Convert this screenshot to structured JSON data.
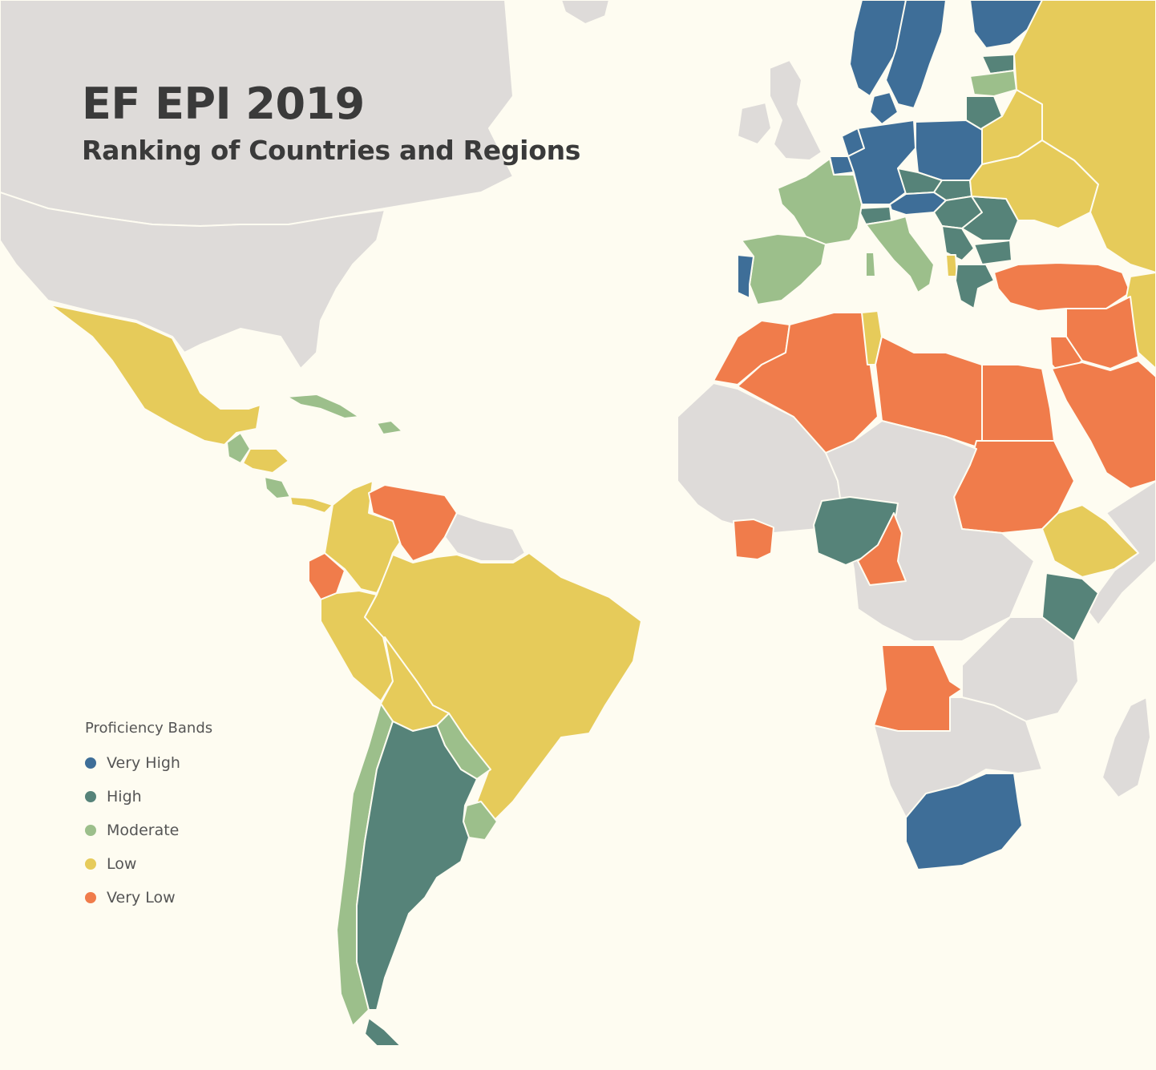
{
  "title": "EF EPI 2019",
  "subtitle": "Ranking of Countries and Regions",
  "legend": {
    "title": "Proficiency Bands",
    "items": [
      {
        "label": "Very High",
        "color": "#3e6e98"
      },
      {
        "label": "High",
        "color": "#568379"
      },
      {
        "label": "Moderate",
        "color": "#9cbf8b"
      },
      {
        "label": "Low",
        "color": "#e6cb5a"
      },
      {
        "label": "Very Low",
        "color": "#f07c4b"
      }
    ]
  },
  "colors": {
    "background": "#fefcf1",
    "no_data": "#dedbd9"
  },
  "countries": [
    {
      "name": "Canada",
      "band": "none"
    },
    {
      "name": "United States",
      "band": "none"
    },
    {
      "name": "Mexico",
      "band": "Low"
    },
    {
      "name": "Guatemala",
      "band": "Moderate"
    },
    {
      "name": "Honduras",
      "band": "Low"
    },
    {
      "name": "Costa Rica",
      "band": "Moderate"
    },
    {
      "name": "Panama",
      "band": "Low"
    },
    {
      "name": "Cuba",
      "band": "Moderate"
    },
    {
      "name": "Dominican Republic",
      "band": "Moderate"
    },
    {
      "name": "Colombia",
      "band": "Low"
    },
    {
      "name": "Venezuela",
      "band": "Very Low"
    },
    {
      "name": "Ecuador",
      "band": "Very Low"
    },
    {
      "name": "Peru",
      "band": "Low"
    },
    {
      "name": "Brazil",
      "band": "Low"
    },
    {
      "name": "Bolivia",
      "band": "Low"
    },
    {
      "name": "Paraguay",
      "band": "Moderate"
    },
    {
      "name": "Uruguay",
      "band": "Moderate"
    },
    {
      "name": "Chile",
      "band": "Moderate"
    },
    {
      "name": "Argentina",
      "band": "High"
    },
    {
      "name": "Guyana / Suriname",
      "band": "none"
    },
    {
      "name": "Greenland",
      "band": "none"
    },
    {
      "name": "Norway",
      "band": "Very High"
    },
    {
      "name": "Sweden",
      "band": "Very High"
    },
    {
      "name": "Finland",
      "band": "Very High"
    },
    {
      "name": "Denmark",
      "band": "Very High"
    },
    {
      "name": "Netherlands",
      "band": "Very High"
    },
    {
      "name": "Belgium",
      "band": "Very High"
    },
    {
      "name": "Germany",
      "band": "Very High"
    },
    {
      "name": "Poland",
      "band": "Very High"
    },
    {
      "name": "Austria",
      "band": "Very High"
    },
    {
      "name": "Portugal",
      "band": "Very High"
    },
    {
      "name": "Estonia",
      "band": "High"
    },
    {
      "name": "Latvia",
      "band": "Moderate"
    },
    {
      "name": "Lithuania",
      "band": "High"
    },
    {
      "name": "Czech Republic",
      "band": "High"
    },
    {
      "name": "Slovakia",
      "band": "High"
    },
    {
      "name": "Hungary",
      "band": "High"
    },
    {
      "name": "Romania",
      "band": "High"
    },
    {
      "name": "Serbia",
      "band": "High"
    },
    {
      "name": "Bulgaria",
      "band": "High"
    },
    {
      "name": "Greece",
      "band": "High"
    },
    {
      "name": "Switzerland",
      "band": "High"
    },
    {
      "name": "France",
      "band": "Moderate"
    },
    {
      "name": "Spain",
      "band": "Moderate"
    },
    {
      "name": "Italy",
      "band": "Moderate"
    },
    {
      "name": "Albania",
      "band": "Low"
    },
    {
      "name": "United Kingdom",
      "band": "none"
    },
    {
      "name": "Ireland",
      "band": "none"
    },
    {
      "name": "Belarus",
      "band": "Low"
    },
    {
      "name": "Ukraine",
      "band": "Low"
    },
    {
      "name": "Russia",
      "band": "Low"
    },
    {
      "name": "Turkey",
      "band": "Very Low"
    },
    {
      "name": "Syria / Iraq",
      "band": "Very Low"
    },
    {
      "name": "Jordan",
      "band": "Very Low"
    },
    {
      "name": "Saudi Arabia",
      "band": "Very Low"
    },
    {
      "name": "Iran",
      "band": "Low"
    },
    {
      "name": "Morocco",
      "band": "Very Low"
    },
    {
      "name": "Algeria",
      "band": "Very Low"
    },
    {
      "name": "Tunisia",
      "band": "Low"
    },
    {
      "name": "Libya",
      "band": "Very Low"
    },
    {
      "name": "Egypt",
      "band": "Very Low"
    },
    {
      "name": "Sudan",
      "band": "Very Low"
    },
    {
      "name": "Ethiopia",
      "band": "Low"
    },
    {
      "name": "Kenya",
      "band": "High"
    },
    {
      "name": "Nigeria",
      "band": "High"
    },
    {
      "name": "Cameroon",
      "band": "Very Low"
    },
    {
      "name": "Ivory Coast",
      "band": "Very Low"
    },
    {
      "name": "Angola",
      "band": "Very Low"
    },
    {
      "name": "South Africa",
      "band": "Very High"
    },
    {
      "name": "West Africa",
      "band": "none"
    },
    {
      "name": "Central Africa",
      "band": "none"
    },
    {
      "name": "East Africa",
      "band": "none"
    },
    {
      "name": "Southern Africa",
      "band": "none"
    },
    {
      "name": "Madagascar",
      "band": "none"
    },
    {
      "name": "Somalia",
      "band": "none"
    }
  ]
}
